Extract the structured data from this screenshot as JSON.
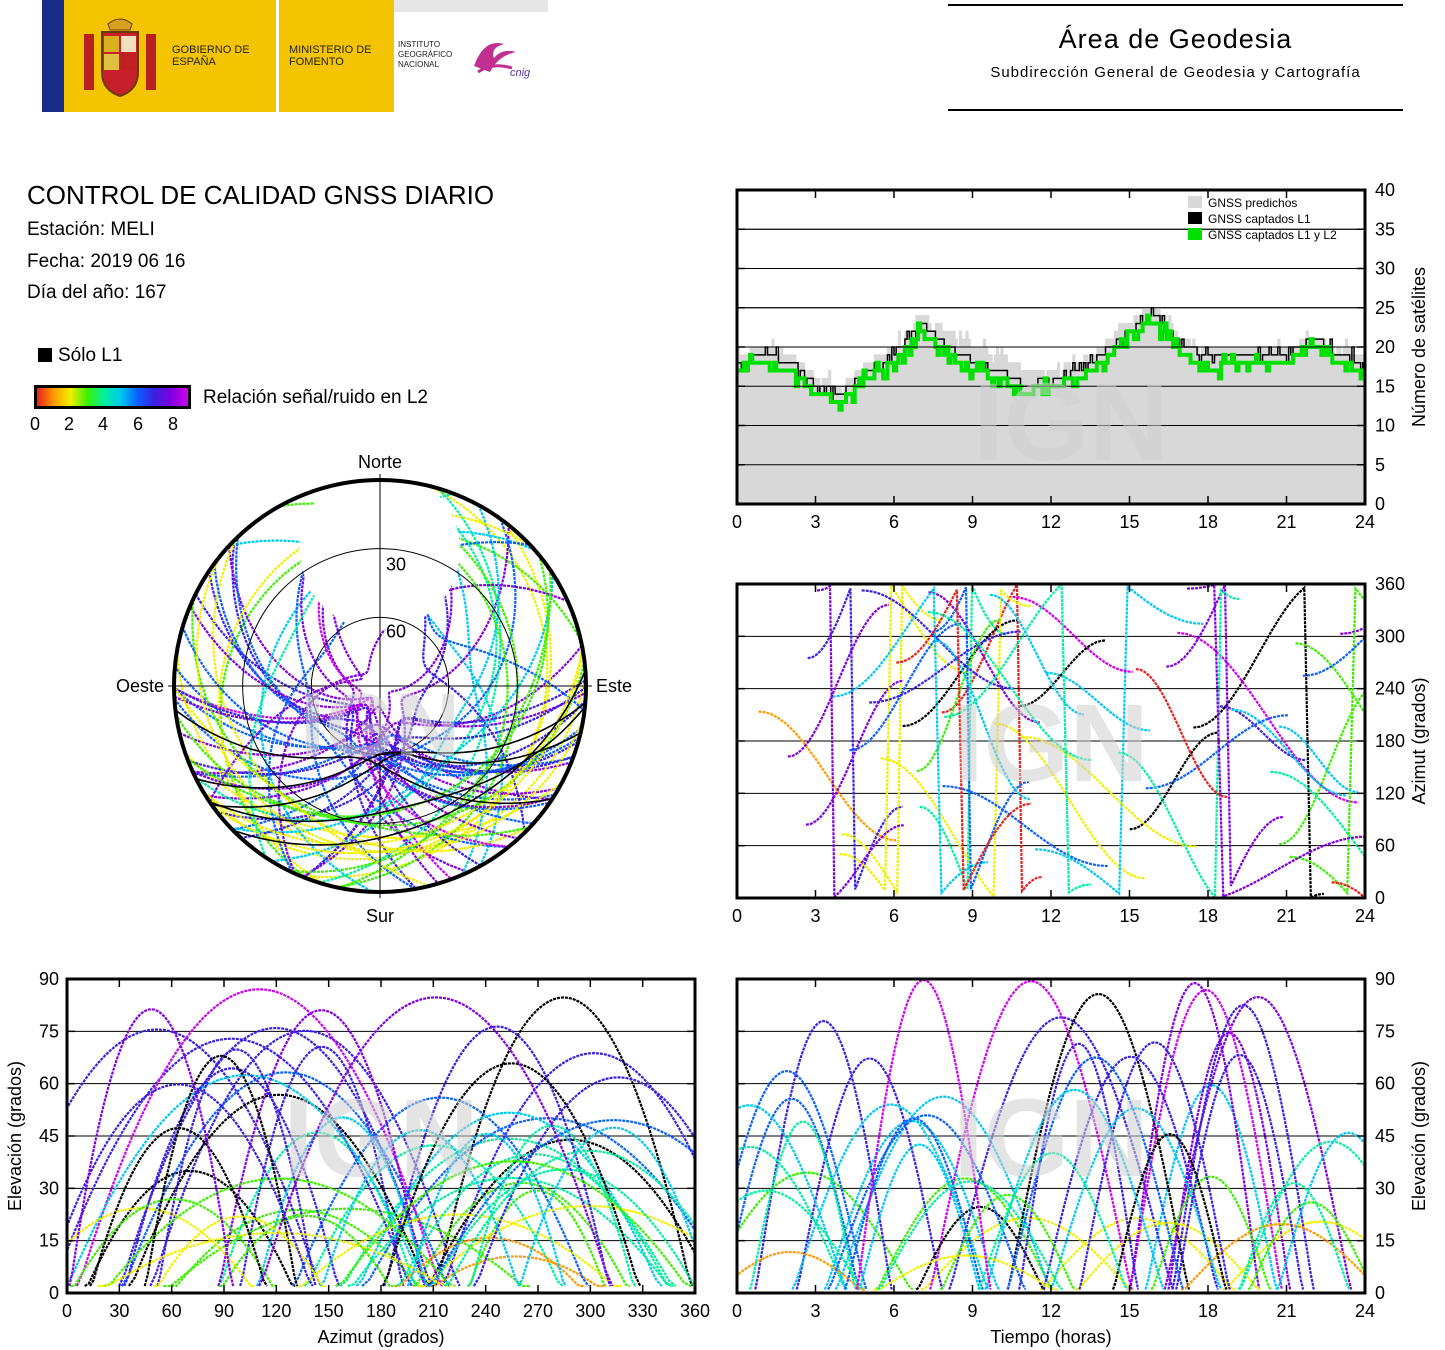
{
  "header": {
    "gobierno": "GOBIERNO DE ESPAÑA",
    "ministerio": "MINISTERIO DE FOMENTO",
    "instituto": "INSTITUTO GEOGRÁFICO NACIONAL",
    "cnig": "cnig",
    "area_title": "Área de Geodesia",
    "area_subtitle": "Subdirección General de Geodesia y Cartografía"
  },
  "info": {
    "title": "CONTROL DE CALIDAD GNSS DIARIO",
    "station": "Estación: MELI",
    "date": "Fecha: 2019 06 16",
    "doy": "Día del año: 167"
  },
  "legend": {
    "l1_only": "Sólo L1",
    "snr_label": "Relación señal/ruido en L2",
    "snr_ticks": [
      "0",
      "2",
      "4",
      "6",
      "8"
    ]
  },
  "colors": {
    "snr_scale": [
      "#e8201c",
      "#ff9a00",
      "#f0f000",
      "#3cf000",
      "#00f0a0",
      "#00c8f0",
      "#0a60ff",
      "#3a20e0",
      "#8000e0",
      "#d000f0"
    ],
    "predicted": "#d8d8d8",
    "captured_l1": "#000000",
    "captured_l1_l2": "#00e000"
  },
  "chart_data": [
    {
      "id": "satellite-count",
      "type": "area",
      "xlabel": "",
      "ylabel": "Número de satélites",
      "xlim": [
        0,
        24
      ],
      "ylim": [
        0,
        40
      ],
      "xticks": [
        "0",
        "3",
        "6",
        "9",
        "12",
        "15",
        "18",
        "21",
        "24"
      ],
      "yticks": [
        "0",
        "5",
        "10",
        "15",
        "20",
        "25",
        "30",
        "35",
        "40"
      ],
      "grid": true,
      "legend_position": "top-right",
      "watermark": "IGN",
      "series": [
        {
          "name": "GNSS predichos",
          "x": [
            0,
            1,
            2,
            3,
            4,
            5,
            6,
            7,
            8,
            9,
            10,
            11,
            12,
            13,
            14,
            15,
            16,
            17,
            18,
            19,
            20,
            21,
            22,
            23,
            24
          ],
          "values": [
            19,
            20,
            19,
            16,
            15,
            18,
            20,
            24,
            22,
            20,
            19,
            17,
            17,
            18,
            20,
            24,
            25,
            21,
            20,
            20,
            20,
            20,
            21,
            20,
            19
          ]
        },
        {
          "name": "GNSS captados L1",
          "x": [
            0,
            1,
            2,
            3,
            4,
            5,
            6,
            7,
            8,
            9,
            10,
            11,
            12,
            13,
            14,
            15,
            16,
            17,
            18,
            19,
            20,
            21,
            22,
            23,
            24
          ],
          "values": [
            18,
            19,
            18,
            15,
            14,
            17,
            19,
            23,
            20,
            18,
            17,
            15,
            16,
            17,
            19,
            22,
            24,
            20,
            19,
            19,
            19,
            19,
            21,
            19,
            18
          ]
        },
        {
          "name": "GNSS captados L1 y L2",
          "x": [
            0,
            1,
            2,
            3,
            4,
            5,
            6,
            7,
            8,
            9,
            10,
            11,
            12,
            13,
            14,
            15,
            16,
            17,
            18,
            19,
            20,
            21,
            22,
            23,
            24
          ],
          "values": [
            17,
            18,
            17,
            14,
            13,
            16,
            18,
            22,
            19,
            17,
            16,
            14,
            15,
            16,
            18,
            22,
            23,
            19,
            17,
            18,
            18,
            18,
            20,
            18,
            17
          ]
        }
      ]
    },
    {
      "id": "sky-plot",
      "type": "scatter",
      "projection": "polar",
      "directions": {
        "north": "Norte",
        "south": "Sur",
        "east": "Este",
        "west": "Oeste"
      },
      "elevation_rings": [
        "30",
        "60"
      ],
      "watermark": "IGN"
    },
    {
      "id": "azimuth-vs-time",
      "type": "scatter",
      "xlabel": "",
      "ylabel": "Azimut (grados)",
      "xlim": [
        0,
        24
      ],
      "ylim": [
        0,
        360
      ],
      "xticks": [
        "0",
        "3",
        "6",
        "9",
        "12",
        "15",
        "18",
        "21",
        "24"
      ],
      "yticks": [
        "0",
        "60",
        "120",
        "180",
        "240",
        "300",
        "360"
      ],
      "grid": true,
      "watermark": "IGN"
    },
    {
      "id": "elevation-vs-azimuth",
      "type": "scatter",
      "xlabel": "Azimut (grados)",
      "ylabel": "Elevación (grados)",
      "xlim": [
        0,
        360
      ],
      "ylim": [
        0,
        90
      ],
      "xticks": [
        "0",
        "30",
        "60",
        "90",
        "120",
        "150",
        "180",
        "210",
        "240",
        "270",
        "300",
        "330",
        "360"
      ],
      "yticks": [
        "0",
        "15",
        "30",
        "45",
        "60",
        "75",
        "90"
      ],
      "grid": true,
      "watermark": "IGN"
    },
    {
      "id": "elevation-vs-time",
      "type": "scatter",
      "xlabel": "Tiempo (horas)",
      "ylabel": "Elevación (grados)",
      "xlim": [
        0,
        24
      ],
      "ylim": [
        0,
        90
      ],
      "xticks": [
        "0",
        "3",
        "6",
        "9",
        "12",
        "15",
        "18",
        "21",
        "24"
      ],
      "yticks": [
        "0",
        "15",
        "30",
        "45",
        "60",
        "75",
        "90"
      ],
      "grid": true,
      "watermark": "IGN"
    }
  ]
}
